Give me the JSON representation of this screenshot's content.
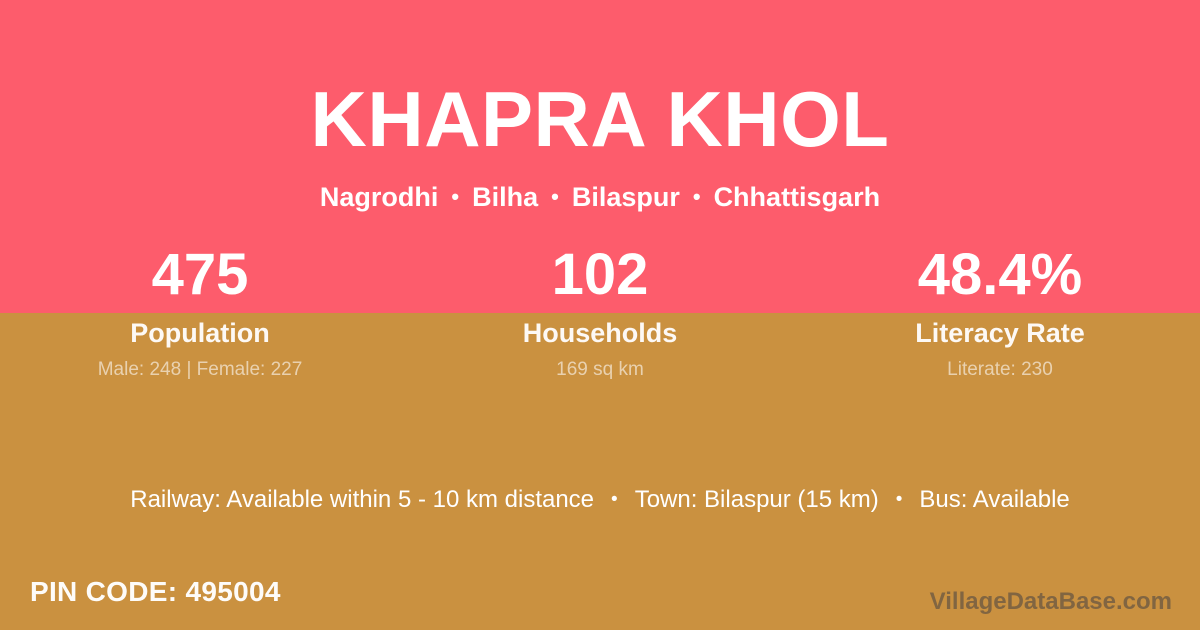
{
  "colors": {
    "pink": "#FD5C6C",
    "gold": "#CA9140",
    "white": "#FFFFFF"
  },
  "header": {
    "village_name": "KHAPRA KHOL",
    "location": {
      "separator": "•",
      "parts": [
        "Nagrodhi",
        "Bilha",
        "Bilaspur",
        "Chhattisgarh"
      ]
    }
  },
  "stats": [
    {
      "value": "475",
      "label": "Population",
      "sub": "Male: 248 | Female: 227"
    },
    {
      "value": "102",
      "label": "Households",
      "sub": "169 sq km"
    },
    {
      "value": "48.4%",
      "label": "Literacy Rate",
      "sub": "Literate: 230"
    }
  ],
  "info": {
    "separator": "•",
    "items": [
      "Railway: Available within 5 - 10 km distance",
      "Town: Bilaspur (15 km)",
      "Bus: Available"
    ]
  },
  "footer": {
    "pin_label": "PIN CODE:",
    "pin_value": "495004",
    "watermark": "VillageDataBase.com"
  }
}
